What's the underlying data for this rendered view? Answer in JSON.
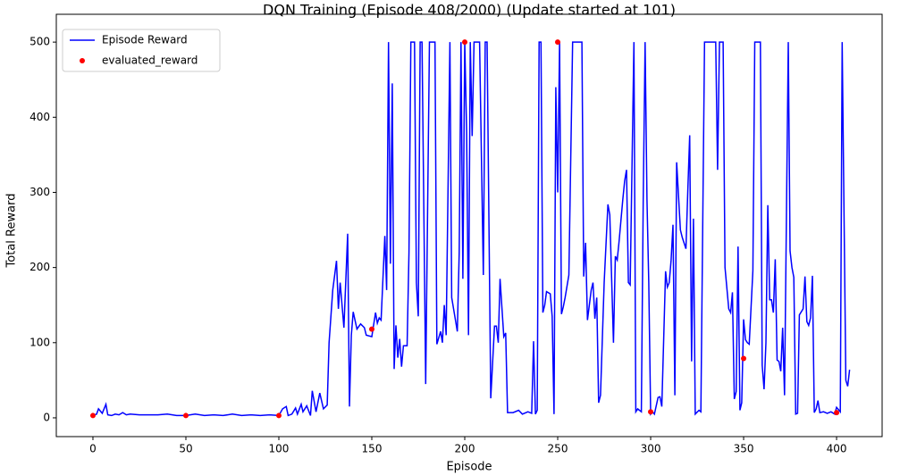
{
  "chart_data": {
    "type": "line",
    "title": "DQN Training (Episode 408/2000) (Update started at 101)",
    "x_label": "Episode",
    "y_label": "Total Reward",
    "xlim": [
      -19.7,
      424.5
    ],
    "ylim": [
      -25,
      537
    ],
    "xticks": [
      0,
      50,
      100,
      150,
      200,
      250,
      300,
      350,
      400
    ],
    "yticks": [
      0,
      100,
      200,
      300,
      400,
      500
    ],
    "grid": false,
    "legend": "upper left",
    "series": [
      {
        "name": "Episode Reward",
        "type": "line",
        "color": "#0000ff",
        "x": [
          0,
          2,
          3,
          5,
          7,
          8,
          10,
          12,
          14,
          16,
          18,
          20,
          25,
          30,
          35,
          40,
          45,
          50,
          55,
          60,
          65,
          70,
          75,
          80,
          85,
          90,
          95,
          100,
          102,
          104,
          105,
          107,
          109,
          110,
          112,
          113,
          115,
          117,
          118,
          120,
          122,
          124,
          126,
          127,
          129,
          131,
          132,
          133,
          135,
          137,
          138,
          139,
          140,
          142,
          144,
          146,
          147,
          150,
          152,
          153,
          154,
          155,
          157,
          158,
          159,
          160,
          161,
          162,
          163,
          164,
          165,
          166,
          167,
          169,
          170,
          171,
          173,
          174,
          175,
          176,
          177,
          178,
          179,
          181,
          184,
          185,
          187,
          188,
          189,
          190,
          192,
          193,
          195,
          196,
          197,
          198,
          199,
          200,
          201,
          202,
          203,
          204,
          205,
          208,
          210,
          211,
          212,
          214,
          216,
          217,
          218,
          219,
          221,
          222,
          223,
          226,
          229,
          231,
          234,
          236,
          237,
          238,
          239,
          240,
          241,
          242,
          243,
          244,
          246,
          247,
          248,
          249,
          250,
          251,
          252,
          253,
          254,
          256,
          258,
          263,
          264,
          265,
          266,
          268,
          269,
          270,
          271,
          272,
          273,
          275,
          277,
          278,
          280,
          281,
          282,
          283,
          285,
          286,
          287,
          288,
          289,
          291,
          292,
          293,
          295,
          296,
          297,
          298,
          299,
          300,
          301,
          302,
          304,
          305,
          306,
          308,
          309,
          310,
          311,
          312,
          313,
          314,
          316,
          317,
          319,
          320,
          321,
          322,
          323,
          324,
          326,
          327,
          329,
          335,
          336,
          337,
          339,
          340,
          342,
          343,
          344,
          345,
          346,
          347,
          348,
          349,
          350,
          351,
          352,
          353,
          355,
          356,
          359,
          360,
          361,
          362,
          363,
          364,
          365,
          366,
          367,
          368,
          369,
          370,
          371,
          372,
          374,
          375,
          376,
          377,
          378,
          379,
          380,
          382,
          383,
          384,
          385,
          386,
          387,
          388,
          389,
          390,
          391,
          393,
          395,
          397,
          399,
          400,
          402,
          403,
          405,
          406,
          407
        ],
        "values": [
          3,
          5,
          12,
          6,
          18,
          4,
          3,
          5,
          4,
          7,
          4,
          5,
          4,
          4,
          4,
          5,
          3,
          3,
          5,
          3,
          4,
          3,
          5,
          3,
          4,
          3,
          4,
          3,
          12,
          15,
          3,
          5,
          13,
          5,
          18,
          8,
          16,
          3,
          36,
          8,
          33,
          12,
          17,
          100,
          170,
          209,
          145,
          180,
          120,
          245,
          15,
          110,
          141,
          118,
          125,
          120,
          110,
          108,
          140,
          126,
          133,
          130,
          242,
          170,
          500,
          205,
          445,
          65,
          123,
          80,
          105,
          68,
          96,
          96,
          220,
          500,
          500,
          180,
          135,
          500,
          500,
          280,
          45,
          500,
          500,
          98,
          115,
          100,
          150,
          110,
          500,
          160,
          130,
          115,
          220,
          500,
          185,
          500,
          380,
          110,
          500,
          375,
          500,
          500,
          190,
          500,
          500,
          26,
          122,
          122,
          100,
          185,
          108,
          113,
          7,
          7,
          10,
          5,
          8,
          6,
          102,
          5,
          10,
          500,
          500,
          140,
          150,
          168,
          165,
          135,
          5,
          440,
          300,
          500,
          138,
          148,
          160,
          190,
          500,
          500,
          188,
          233,
          130,
          170,
          180,
          132,
          160,
          20,
          30,
          180,
          284,
          270,
          100,
          215,
          210,
          235,
          290,
          315,
          330,
          180,
          177,
          500,
          8,
          12,
          8,
          290,
          500,
          290,
          180,
          5,
          8,
          5,
          27,
          28,
          15,
          195,
          174,
          180,
          210,
          257,
          30,
          340,
          250,
          240,
          225,
          303,
          376,
          75,
          265,
          5,
          10,
          8,
          500,
          500,
          330,
          500,
          500,
          200,
          145,
          140,
          167,
          25,
          35,
          228,
          10,
          20,
          131,
          104,
          100,
          98,
          196,
          500,
          500,
          70,
          38,
          100,
          283,
          157,
          157,
          140,
          211,
          77,
          75,
          62,
          120,
          30,
          500,
          222,
          200,
          187,
          5,
          6,
          137,
          145,
          188,
          128,
          123,
          133,
          189,
          7,
          12,
          23,
          7,
          8,
          6,
          8,
          5,
          14,
          8,
          500,
          50,
          42,
          64
        ]
      },
      {
        "name": "evaluated_reward",
        "type": "scatter",
        "color": "#ff0000",
        "x": [
          0,
          50,
          100,
          150,
          200,
          250,
          300,
          350,
          400
        ],
        "values": [
          3,
          3,
          3,
          118,
          500,
          500,
          8,
          79,
          7
        ]
      }
    ]
  }
}
